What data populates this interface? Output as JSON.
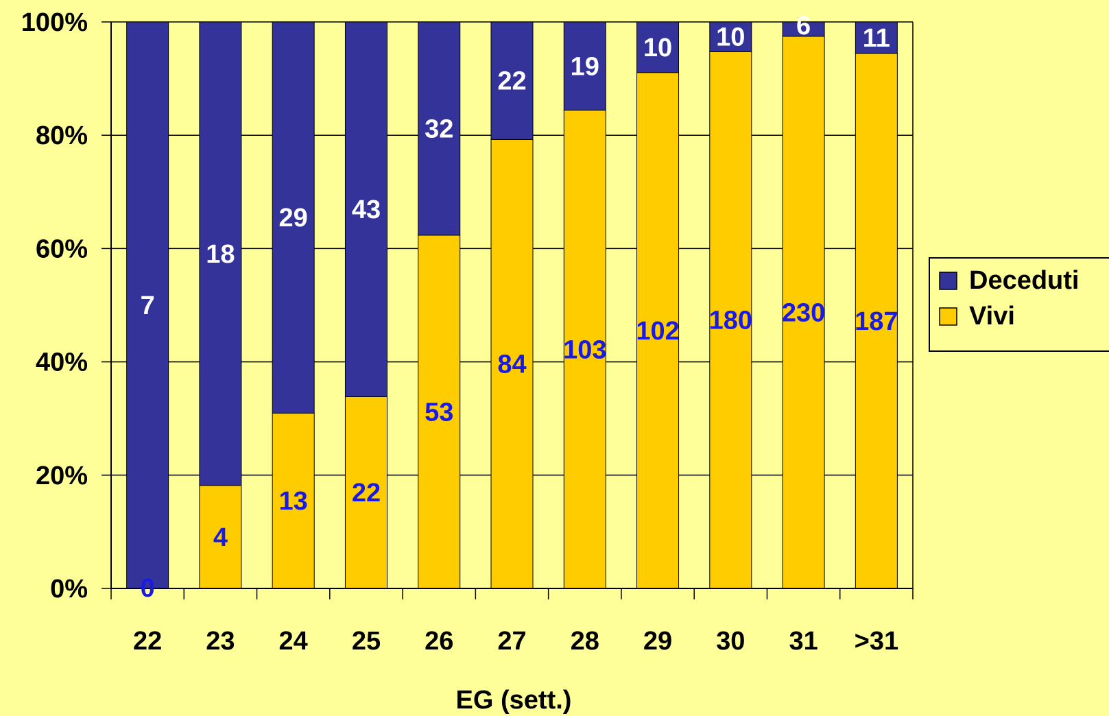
{
  "chart_data": {
    "type": "bar",
    "stacked": true,
    "normalized": true,
    "title": "",
    "xlabel": "EG (sett.)",
    "ylabel": "",
    "ylim": [
      0,
      100
    ],
    "yticks": [
      "0%",
      "20%",
      "40%",
      "60%",
      "80%",
      "100%"
    ],
    "categories": [
      "22",
      "23",
      "24",
      "25",
      "26",
      "27",
      "28",
      "29",
      "30",
      "31",
      ">31"
    ],
    "series": [
      {
        "name": "Vivi",
        "color": "#FFCC00",
        "label_color": "#1A1AE6",
        "values": [
          0,
          4,
          13,
          22,
          53,
          84,
          103,
          102,
          180,
          230,
          187
        ]
      },
      {
        "name": "Deceduti",
        "color": "#333399",
        "label_color": "#FFFFFF",
        "values": [
          7,
          18,
          29,
          43,
          32,
          22,
          19,
          10,
          10,
          6,
          11
        ]
      }
    ],
    "grid": true,
    "legend_position": "right",
    "legend_order": [
      "Deceduti",
      "Vivi"
    ],
    "background_color": "#FFFF99",
    "axis_color": "#000000"
  }
}
